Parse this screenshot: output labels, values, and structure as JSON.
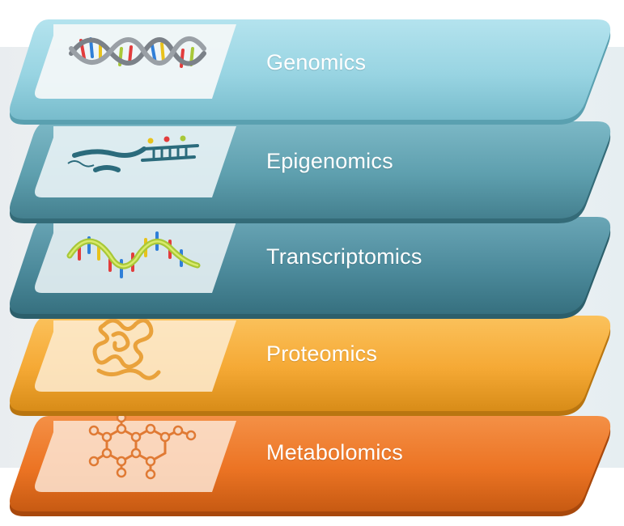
{
  "layers": [
    {
      "label": "Genomics",
      "icon": "dna-double-helix-icon",
      "color": "#9fd9e6"
    },
    {
      "label": "Epigenomics",
      "icon": "methylated-dna-icon",
      "color": "#62a3b2"
    },
    {
      "label": "Transcriptomics",
      "icon": "rna-strand-icon",
      "color": "#4e8c9c"
    },
    {
      "label": "Proteomics",
      "icon": "folded-protein-icon",
      "color": "#f5a93a"
    },
    {
      "label": "Metabolomics",
      "icon": "metabolite-molecule-icon",
      "color": "#ee7a25"
    }
  ]
}
